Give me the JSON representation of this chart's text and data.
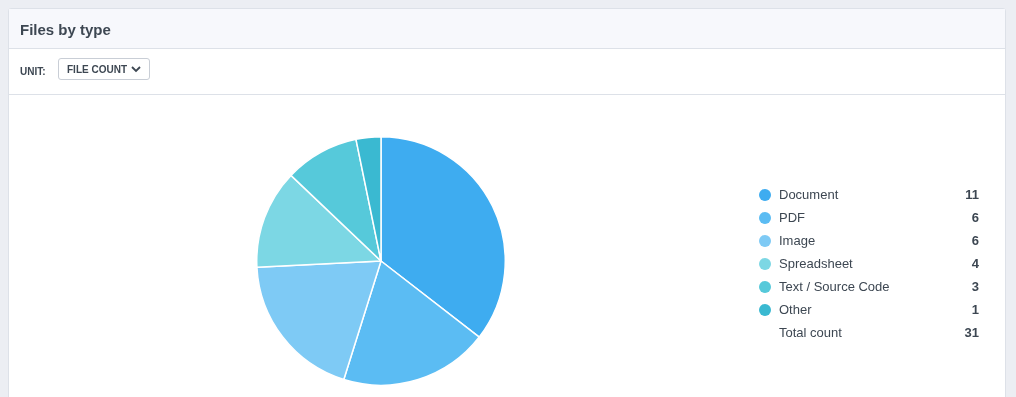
{
  "chart_data": {
    "type": "pie",
    "title": "Files by type",
    "categories": [
      "Document",
      "PDF",
      "Image",
      "Spreadsheet",
      "Text / Source Code",
      "Other"
    ],
    "values": [
      11,
      6,
      6,
      4,
      3,
      1
    ],
    "colors": [
      "#3eacf0",
      "#5bbcf3",
      "#7ecaf5",
      "#7cd7e4",
      "#56c9da",
      "#3ab9d1"
    ],
    "legend": "right",
    "data_labels": true,
    "annotations": [
      "UNIT:",
      "FILE COUNT",
      "Total count"
    ],
    "totals": [
      "31"
    ]
  }
}
